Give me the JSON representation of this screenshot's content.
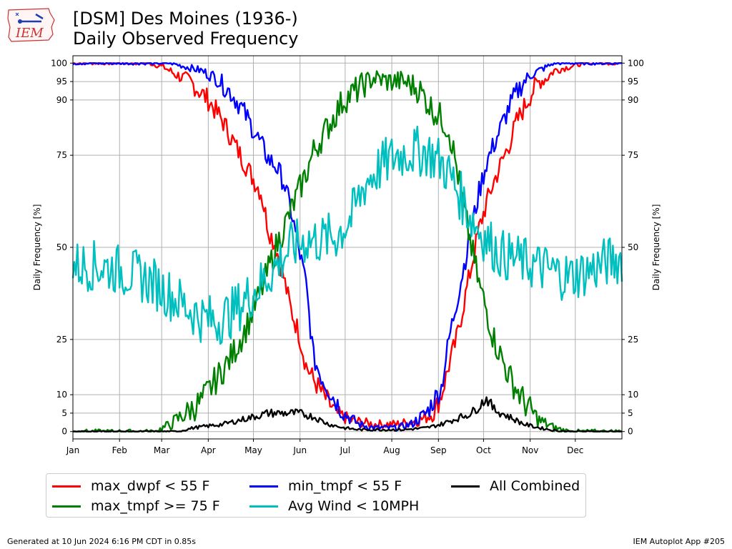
{
  "logo": {
    "text": "IEM",
    "color": "#cc3333"
  },
  "chart_data": {
    "type": "line",
    "title": "[DSM] Des Moines (1936-)",
    "subtitle": "Daily Observed Frequency",
    "ylabel": "Daily Frequency [%]",
    "ylim": [
      -2,
      102
    ],
    "xlim": [
      0,
      365
    ],
    "yticks": [
      0,
      5,
      10,
      25,
      50,
      75,
      90,
      95,
      100
    ],
    "x_tick_labels": [
      "Jan",
      "Feb",
      "Mar",
      "Apr",
      "May",
      "Jun",
      "Jul",
      "Aug",
      "Sep",
      "Oct",
      "Nov",
      "Dec"
    ],
    "grid": true,
    "legend_position": "bottom",
    "series": [
      {
        "name": "max_dwpf < 55 F",
        "color": "#ff0000",
        "points": [
          [
            0,
            100
          ],
          [
            30,
            100
          ],
          [
            50,
            100
          ],
          [
            60,
            99
          ],
          [
            68,
            97
          ],
          [
            78,
            95
          ],
          [
            90,
            90
          ],
          [
            100,
            84
          ],
          [
            110,
            76
          ],
          [
            118,
            70
          ],
          [
            125,
            65
          ],
          [
            130,
            55
          ],
          [
            135,
            50
          ],
          [
            140,
            42
          ],
          [
            145,
            33
          ],
          [
            150,
            27
          ],
          [
            155,
            18
          ],
          [
            160,
            14
          ],
          [
            168,
            9
          ],
          [
            175,
            5
          ],
          [
            185,
            3
          ],
          [
            200,
            2
          ],
          [
            215,
            2
          ],
          [
            230,
            3
          ],
          [
            240,
            5
          ],
          [
            245,
            10
          ],
          [
            250,
            18
          ],
          [
            255,
            25
          ],
          [
            260,
            35
          ],
          [
            265,
            45
          ],
          [
            270,
            55
          ],
          [
            275,
            62
          ],
          [
            280,
            68
          ],
          [
            285,
            73
          ],
          [
            290,
            78
          ],
          [
            295,
            84
          ],
          [
            300,
            88
          ],
          [
            305,
            92
          ],
          [
            310,
            95
          ],
          [
            315,
            96
          ],
          [
            320,
            98
          ],
          [
            330,
            99
          ],
          [
            340,
            100
          ],
          [
            365,
            100
          ]
        ]
      },
      {
        "name": "min_tmpf < 55 F",
        "color": "#0000ff",
        "points": [
          [
            0,
            100
          ],
          [
            30,
            100
          ],
          [
            55,
            100
          ],
          [
            65,
            100
          ],
          [
            75,
            99
          ],
          [
            85,
            98
          ],
          [
            95,
            96
          ],
          [
            105,
            92
          ],
          [
            112,
            88
          ],
          [
            120,
            82
          ],
          [
            125,
            78
          ],
          [
            130,
            74
          ],
          [
            135,
            72
          ],
          [
            140,
            68
          ],
          [
            145,
            60
          ],
          [
            150,
            50
          ],
          [
            155,
            40
          ],
          [
            160,
            20
          ],
          [
            165,
            15
          ],
          [
            172,
            10
          ],
          [
            180,
            5
          ],
          [
            190,
            2
          ],
          [
            200,
            1
          ],
          [
            215,
            1
          ],
          [
            225,
            2
          ],
          [
            235,
            5
          ],
          [
            245,
            12
          ],
          [
            250,
            25
          ],
          [
            255,
            35
          ],
          [
            260,
            45
          ],
          [
            265,
            55
          ],
          [
            270,
            65
          ],
          [
            275,
            73
          ],
          [
            280,
            78
          ],
          [
            285,
            83
          ],
          [
            290,
            88
          ],
          [
            295,
            92
          ],
          [
            300,
            95
          ],
          [
            305,
            97
          ],
          [
            310,
            98
          ],
          [
            320,
            100
          ],
          [
            330,
            100
          ],
          [
            365,
            100
          ]
        ]
      },
      {
        "name": "max_tmpf >= 75 F",
        "color": "#008000",
        "points": [
          [
            0,
            0
          ],
          [
            40,
            0
          ],
          [
            55,
            0
          ],
          [
            65,
            2
          ],
          [
            75,
            5
          ],
          [
            85,
            8
          ],
          [
            95,
            14
          ],
          [
            105,
            20
          ],
          [
            115,
            28
          ],
          [
            125,
            38
          ],
          [
            135,
            50
          ],
          [
            145,
            60
          ],
          [
            155,
            70
          ],
          [
            160,
            76
          ],
          [
            170,
            83
          ],
          [
            180,
            90
          ],
          [
            190,
            93
          ],
          [
            200,
            96
          ],
          [
            210,
            95
          ],
          [
            220,
            95
          ],
          [
            230,
            93
          ],
          [
            238,
            88
          ],
          [
            245,
            85
          ],
          [
            250,
            82
          ],
          [
            255,
            72
          ],
          [
            260,
            60
          ],
          [
            265,
            50
          ],
          [
            270,
            40
          ],
          [
            275,
            33
          ],
          [
            280,
            25
          ],
          [
            285,
            20
          ],
          [
            290,
            15
          ],
          [
            300,
            8
          ],
          [
            310,
            3
          ],
          [
            320,
            1
          ],
          [
            330,
            0
          ],
          [
            365,
            0
          ]
        ]
      },
      {
        "name": "Avg Wind < 10MPH",
        "color": "#00bfbf",
        "points": [
          [
            0,
            45
          ],
          [
            15,
            45
          ],
          [
            30,
            44
          ],
          [
            45,
            42
          ],
          [
            55,
            40
          ],
          [
            65,
            37
          ],
          [
            75,
            34
          ],
          [
            85,
            31
          ],
          [
            95,
            30
          ],
          [
            105,
            32
          ],
          [
            115,
            36
          ],
          [
            125,
            40
          ],
          [
            135,
            45
          ],
          [
            145,
            50
          ],
          [
            155,
            52
          ],
          [
            165,
            52
          ],
          [
            175,
            53
          ],
          [
            185,
            58
          ],
          [
            195,
            68
          ],
          [
            205,
            72
          ],
          [
            215,
            75
          ],
          [
            225,
            76
          ],
          [
            235,
            76
          ],
          [
            245,
            73
          ],
          [
            250,
            70
          ],
          [
            255,
            66
          ],
          [
            260,
            62
          ],
          [
            265,
            58
          ],
          [
            270,
            55
          ],
          [
            275,
            52
          ],
          [
            285,
            48
          ],
          [
            300,
            46
          ],
          [
            315,
            44
          ],
          [
            330,
            42
          ],
          [
            345,
            44
          ],
          [
            355,
            46
          ],
          [
            365,
            47
          ]
        ]
      },
      {
        "name": "All Combined",
        "color": "#000000",
        "points": [
          [
            0,
            0
          ],
          [
            40,
            0
          ],
          [
            50,
            0
          ],
          [
            60,
            0
          ],
          [
            70,
            0
          ],
          [
            80,
            1
          ],
          [
            90,
            1.5
          ],
          [
            100,
            2
          ],
          [
            110,
            3
          ],
          [
            120,
            4
          ],
          [
            130,
            5
          ],
          [
            140,
            5
          ],
          [
            150,
            5
          ],
          [
            160,
            4
          ],
          [
            170,
            2
          ],
          [
            180,
            1
          ],
          [
            190,
            0.5
          ],
          [
            200,
            0.5
          ],
          [
            220,
            0.5
          ],
          [
            235,
            1
          ],
          [
            245,
            2
          ],
          [
            255,
            3.5
          ],
          [
            265,
            5
          ],
          [
            270,
            7
          ],
          [
            275,
            9
          ],
          [
            280,
            6
          ],
          [
            290,
            4
          ],
          [
            300,
            2
          ],
          [
            310,
            1
          ],
          [
            320,
            0.3
          ],
          [
            330,
            0
          ],
          [
            365,
            0
          ]
        ]
      }
    ]
  },
  "legend": {
    "items": [
      {
        "label": "max_dwpf < 55 F",
        "color": "#ff0000"
      },
      {
        "label": "max_tmpf >= 75 F",
        "color": "#008000"
      },
      {
        "label": "min_tmpf < 55 F",
        "color": "#0000ff"
      },
      {
        "label": "Avg Wind < 10MPH",
        "color": "#00bfbf"
      },
      {
        "label": "All Combined",
        "color": "#000000"
      }
    ]
  },
  "footer": {
    "left": "Generated at 10 Jun 2024 6:16 PM CDT in 0.85s",
    "right": "IEM Autoplot App #205"
  }
}
